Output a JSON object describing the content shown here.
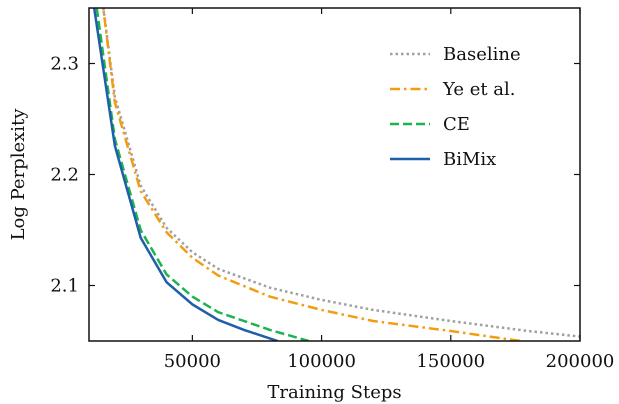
{
  "chart_data": {
    "type": "line",
    "xlabel": "Training Steps",
    "ylabel": "Log Perplexity",
    "xlim": [
      10000,
      200000
    ],
    "ylim": [
      2.05,
      2.35
    ],
    "xticks": [
      50000,
      100000,
      150000,
      200000
    ],
    "yticks": [
      2.1,
      2.2,
      2.3
    ],
    "xtick_labels": [
      "50000",
      "100000",
      "150000",
      "200000"
    ],
    "ytick_labels": [
      "2.1",
      "2.2",
      "2.3"
    ],
    "legend_position": "upper-right",
    "grid": false,
    "series": [
      {
        "name": "Baseline",
        "color": "#a0a0a0",
        "dash": "dotted",
        "x": [
          15000,
          20000,
          30000,
          40000,
          50000,
          60000,
          80000,
          100000,
          120000,
          150000,
          180000,
          200000
        ],
        "y": [
          2.36,
          2.27,
          2.19,
          2.152,
          2.13,
          2.115,
          2.098,
          2.087,
          2.078,
          2.068,
          2.059,
          2.054
        ]
      },
      {
        "name": "Ye et al.",
        "color": "#f39c12",
        "dash": "dashdot",
        "x": [
          15000,
          20000,
          30000,
          40000,
          50000,
          60000,
          80000,
          100000,
          120000,
          150000,
          177000
        ],
        "y": [
          2.36,
          2.265,
          2.185,
          2.148,
          2.125,
          2.109,
          2.09,
          2.078,
          2.068,
          2.059,
          2.05
        ]
      },
      {
        "name": "CE",
        "color": "#1db34f",
        "dash": "dashed",
        "x": [
          13000,
          20000,
          30000,
          40000,
          50000,
          60000,
          80000,
          95000
        ],
        "y": [
          2.35,
          2.232,
          2.15,
          2.11,
          2.09,
          2.076,
          2.06,
          2.05
        ]
      },
      {
        "name": "BiMix",
        "color": "#1f5fa8",
        "dash": "solid",
        "x": [
          12000,
          20000,
          30000,
          40000,
          50000,
          60000,
          70000,
          83000
        ],
        "y": [
          2.35,
          2.226,
          2.143,
          2.103,
          2.083,
          2.069,
          2.06,
          2.05
        ]
      }
    ]
  }
}
